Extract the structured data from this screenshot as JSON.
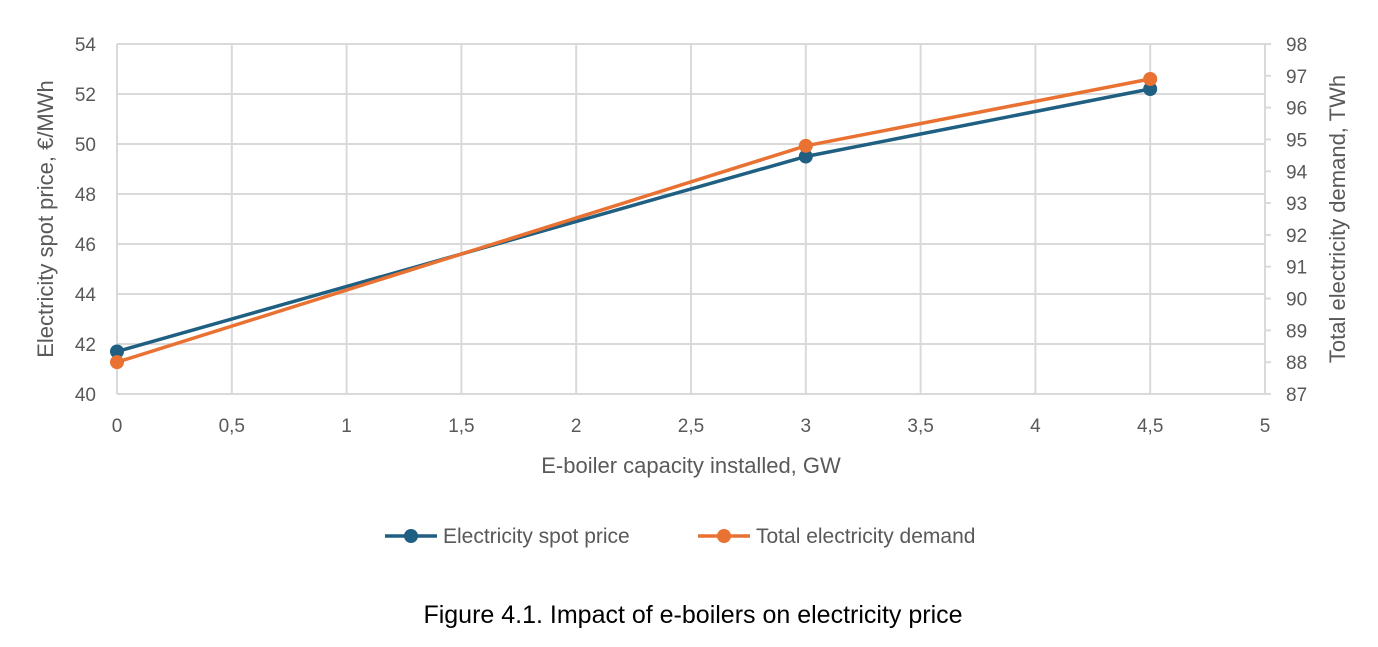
{
  "chart_data": {
    "type": "line",
    "x": [
      0,
      3,
      4.5
    ],
    "xlabel": "E-boiler capacity installed, GW",
    "xlim": [
      0,
      5
    ],
    "xticks": [
      "0",
      "0,5",
      "1",
      "1,5",
      "2",
      "2,5",
      "3",
      "3,5",
      "4",
      "4,5",
      "5"
    ],
    "ylabel": "Electricity spot price, €/MWh",
    "ylim": [
      40,
      54
    ],
    "yticks": [
      "40",
      "42",
      "44",
      "46",
      "48",
      "50",
      "52",
      "54"
    ],
    "y2label": "Total electricity demand, TWh",
    "y2lim": [
      87,
      98
    ],
    "y2ticks": [
      "87",
      "88",
      "89",
      "90",
      "91",
      "92",
      "93",
      "94",
      "95",
      "96",
      "97",
      "98"
    ],
    "grid": true,
    "legend_position": "bottom",
    "series": [
      {
        "name": "Electricity spot price",
        "axis": "left",
        "values": [
          41.7,
          49.5,
          52.2
        ],
        "color": "#1F5F82"
      },
      {
        "name": "Total electricity demand",
        "axis": "right",
        "values": [
          88.0,
          94.8,
          96.9
        ],
        "color": "#E97132"
      }
    ]
  },
  "caption": "Figure 4.1. Impact of e-boilers on electricity price"
}
